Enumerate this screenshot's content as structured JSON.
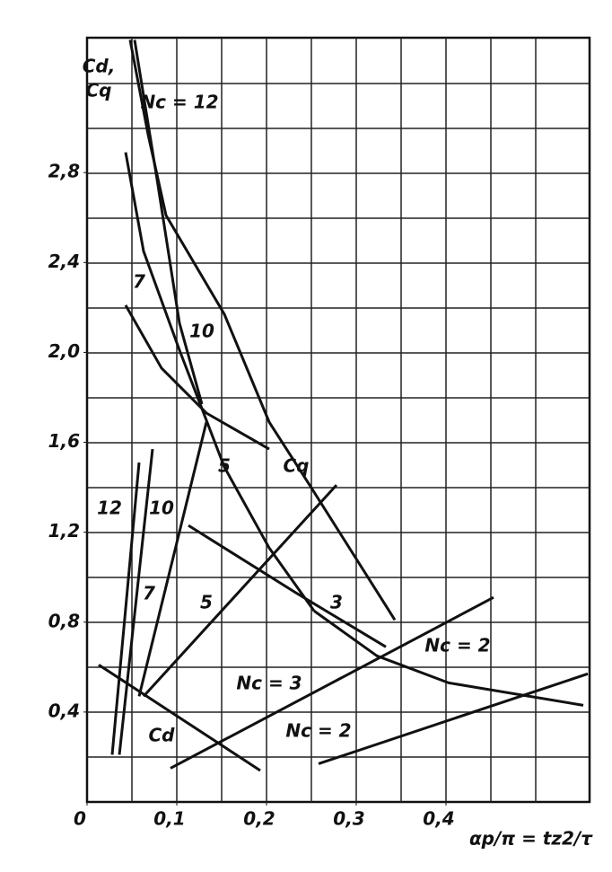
{
  "chart_data": {
    "type": "line",
    "ylabel": [
      "Cd,",
      "Cq"
    ],
    "xlabel": "αp/π = tz2/τ",
    "annotations": [
      "Cq"
    ],
    "xlim": [
      0,
      0.56
    ],
    "ylim": [
      0,
      3.4
    ],
    "xticks": [
      0,
      {
        "value": 0.1,
        "label": "0,1"
      },
      {
        "value": 0.2,
        "label": "0,2"
      },
      {
        "value": 0.3,
        "label": "0,3"
      },
      {
        "value": 0.4,
        "label": "0,4"
      }
    ],
    "yticks": [
      {
        "value": 0.4,
        "label": "0,4"
      },
      {
        "value": 0.8,
        "label": "0,8"
      },
      {
        "value": 1.2,
        "label": "1,2"
      },
      {
        "value": 1.6,
        "label": "1,6"
      },
      {
        "value": 2.0,
        "label": "2,0"
      },
      {
        "value": 2.4,
        "label": "2,4"
      },
      {
        "value": 2.8,
        "label": "2,8"
      }
    ],
    "grid": true,
    "series": [
      {
        "name": "Nc = 12",
        "color": "#111",
        "x": [
          0.048,
          0.068,
          0.088,
          0.153,
          0.203,
          0.248,
          0.343
        ],
        "values": [
          3.39,
          2.97,
          2.61,
          2.17,
          1.69,
          1.41,
          0.81
        ]
      },
      {
        "name": "10",
        "color": "#111",
        "x": [
          0.053,
          0.078,
          0.103,
          0.128
        ],
        "values": [
          3.39,
          2.77,
          2.13,
          1.77
        ]
      },
      {
        "name": "7",
        "color": "#111",
        "x": [
          0.043,
          0.063,
          0.103,
          0.153,
          0.203,
          0.253
        ],
        "values": [
          2.89,
          2.45,
          2.01,
          1.49,
          1.13,
          0.85
        ]
      },
      {
        "name": "5",
        "color": "#111",
        "x": [
          0.043,
          0.083,
          0.133,
          0.203
        ],
        "values": [
          2.21,
          1.93,
          1.73,
          1.57
        ]
      },
      {
        "name": "3",
        "color": "#111",
        "x": [
          0.113,
          0.233,
          0.333
        ],
        "values": [
          1.23,
          0.93,
          0.69
        ]
      },
      {
        "name": "Nc = 2",
        "color": "#111",
        "x": [
          0.253,
          0.323,
          0.403,
          0.553
        ],
        "values": [
          0.85,
          0.65,
          0.53,
          0.43
        ]
      },
      {
        "name": "12",
        "color": "#111",
        "x": [
          0.028,
          0.058
        ],
        "values": [
          0.21,
          1.51
        ]
      },
      {
        "name": "10",
        "color": "#111",
        "x": [
          0.036,
          0.073
        ],
        "values": [
          0.21,
          1.57
        ]
      },
      {
        "name": "7",
        "color": "#111",
        "x": [
          0.058,
          0.133
        ],
        "values": [
          0.47,
          1.69
        ]
      },
      {
        "name": "5",
        "color": "#111",
        "x": [
          0.063,
          0.278
        ],
        "values": [
          0.47,
          1.41
        ]
      },
      {
        "name": "Nc = 3",
        "color": "#111",
        "x": [
          0.093,
          0.453
        ],
        "values": [
          0.15,
          0.91
        ]
      },
      {
        "name": "Nc = 2",
        "color": "#111",
        "x": [
          0.258,
          0.558
        ],
        "values": [
          0.17,
          0.57
        ]
      },
      {
        "name": "Cd",
        "color": "#111",
        "x": [
          0.013,
          0.193
        ],
        "values": [
          0.61,
          0.14
        ]
      }
    ]
  }
}
